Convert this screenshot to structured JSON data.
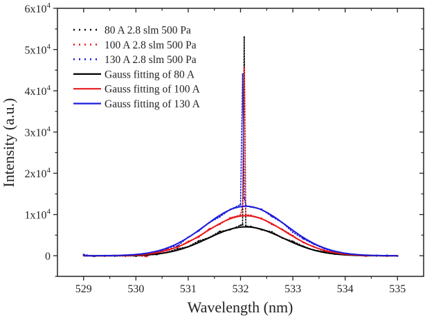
{
  "chart_data": {
    "type": "line",
    "title": "",
    "xlabel": "Wavelength (nm)",
    "ylabel": "Intensity (a.u.)",
    "xlim": [
      528.5,
      535.5
    ],
    "ylim": [
      -5000,
      60000
    ],
    "x_ticks": [
      "529",
      "530",
      "531",
      "532",
      "533",
      "534",
      "535"
    ],
    "x_tick_values": [
      529,
      530,
      531,
      532,
      533,
      534,
      535
    ],
    "y_ticks": [
      {
        "value": 0,
        "mantissa": "0",
        "exp": ""
      },
      {
        "value": 10000,
        "mantissa": "1x10",
        "exp": "4"
      },
      {
        "value": 20000,
        "mantissa": "2x10",
        "exp": "4"
      },
      {
        "value": 30000,
        "mantissa": "3x10",
        "exp": "4"
      },
      {
        "value": 40000,
        "mantissa": "4x10",
        "exp": "4"
      },
      {
        "value": 50000,
        "mantissa": "5x10",
        "exp": "4"
      },
      {
        "value": 60000,
        "mantissa": "6x10",
        "exp": "4"
      }
    ],
    "grid": false,
    "legend_position": "top-left",
    "x": [
      529.0,
      529.2,
      529.4,
      529.6,
      529.8,
      530.0,
      530.2,
      530.4,
      530.6,
      530.8,
      531.0,
      531.2,
      531.4,
      531.6,
      531.8,
      532.0,
      532.04,
      532.07,
      532.1,
      532.2,
      532.4,
      532.6,
      532.8,
      533.0,
      533.2,
      533.4,
      533.6,
      533.8,
      534.0,
      534.2,
      534.4,
      534.6,
      534.8,
      535.0
    ],
    "series": [
      {
        "name": "80 A 2.8 slm 500 Pa",
        "style": "dotted",
        "color": "#000000",
        "values": [
          100,
          -150,
          50,
          -80,
          20,
          -100,
          150,
          300,
          850,
          1700,
          2200,
          3600,
          4400,
          5900,
          6300,
          7400,
          7500,
          53000,
          7200,
          7100,
          6300,
          5800,
          4300,
          3500,
          2300,
          1400,
          1000,
          400,
          300,
          100,
          -50,
          80,
          -100,
          0
        ]
      },
      {
        "name": "100 A 2.8 slm 500 Pa",
        "style": "dotted",
        "color": "#e8191c",
        "values": [
          100,
          -50,
          -100,
          60,
          -120,
          50,
          -200,
          900,
          1600,
          2000,
          3500,
          4500,
          6500,
          7600,
          9200,
          9900,
          12000,
          45500,
          10000,
          9800,
          9100,
          7600,
          6400,
          4900,
          3200,
          2200,
          1200,
          600,
          200,
          150,
          -100,
          50,
          -80,
          0
        ]
      },
      {
        "name": "130 A 2.8 slm 500 Pa",
        "style": "dotted",
        "color": "#1a1adb",
        "values": [
          300,
          -100,
          0,
          -80,
          100,
          120,
          250,
          600,
          1900,
          2400,
          4500,
          6000,
          8000,
          9400,
          11200,
          12400,
          44000,
          14000,
          12200,
          11800,
          11300,
          9500,
          8000,
          5700,
          4100,
          2800,
          1700,
          900,
          300,
          150,
          80,
          -50,
          100,
          -100
        ]
      },
      {
        "name": "Gauss fitting of 80 A",
        "style": "solid",
        "color": "#000000",
        "fit": {
          "amplitude": 7000,
          "center": 532.1,
          "sigma": 0.72
        }
      },
      {
        "name": "Gauss fitting of 100 A",
        "style": "solid",
        "color": "#e8191c",
        "fit": {
          "amplitude": 9700,
          "center": 532.1,
          "sigma": 0.75
        }
      },
      {
        "name": "Gauss fitting of 130 A",
        "style": "solid",
        "color": "#1a1adb",
        "fit": {
          "amplitude": 12000,
          "center": 532.1,
          "sigma": 0.78
        }
      }
    ]
  }
}
